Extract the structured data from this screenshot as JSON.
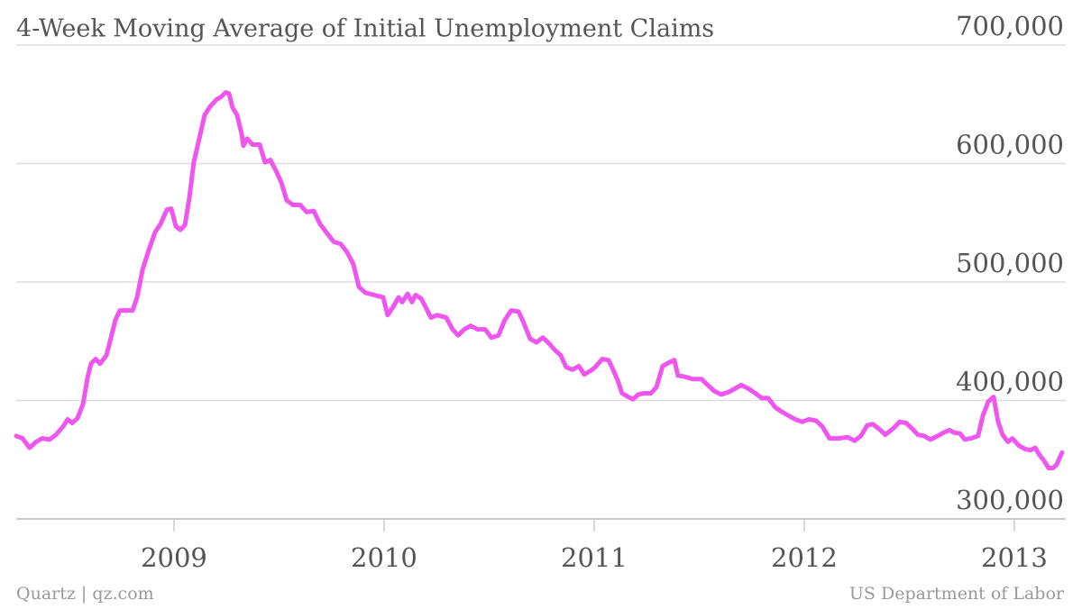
{
  "chart_data": {
    "type": "line",
    "title": "4-Week Moving Average of Initial Unemployment Claims",
    "source_left": "Quartz | qz.com",
    "source_right": "US Department of Labor",
    "color": "#ef55ef",
    "grid": true,
    "xlim": [
      2008.249,
      2013.245
    ],
    "xticks": [
      2009,
      2010,
      2011,
      2012,
      2013
    ],
    "ylim": [
      300000,
      700000
    ],
    "yticks": [
      {
        "value": 300000,
        "label": "300,000"
      },
      {
        "value": 400000,
        "label": "400,000"
      },
      {
        "value": 500000,
        "label": "500,000"
      },
      {
        "value": 600000,
        "label": "600,000"
      },
      {
        "value": 700000,
        "label": "700,000"
      }
    ],
    "x": [
      2008.249,
      2008.279,
      2008.313,
      2008.343,
      2008.373,
      2008.408,
      2008.438,
      2008.472,
      2008.494,
      2008.515,
      2008.541,
      2008.567,
      2008.588,
      2008.605,
      2008.627,
      2008.648,
      2008.678,
      2008.7,
      2008.721,
      2008.742,
      2008.773,
      2008.803,
      2008.824,
      2008.85,
      2008.88,
      2008.91,
      2008.936,
      2008.966,
      2008.987,
      2009.009,
      2009.03,
      2009.052,
      2009.073,
      2009.094,
      2009.124,
      2009.146,
      2009.172,
      2009.202,
      2009.223,
      2009.245,
      2009.262,
      2009.279,
      2009.3,
      2009.322,
      2009.33,
      2009.348,
      2009.373,
      2009.408,
      2009.433,
      2009.459,
      2009.485,
      2009.511,
      2009.536,
      2009.567,
      2009.601,
      2009.631,
      2009.665,
      2009.695,
      2009.725,
      2009.76,
      2009.794,
      2009.824,
      2009.854,
      2009.88,
      2009.91,
      2009.953,
      2009.996,
      2010.017,
      2010.043,
      2010.069,
      2010.086,
      2010.112,
      2010.133,
      2010.15,
      2010.176,
      2010.197,
      2010.223,
      2010.253,
      2010.296,
      2010.326,
      2010.352,
      2010.382,
      2010.412,
      2010.446,
      2010.481,
      2010.511,
      2010.545,
      2010.575,
      2010.605,
      2010.64,
      2010.661,
      2010.695,
      2010.725,
      2010.755,
      2010.781,
      2010.811,
      2010.841,
      2010.867,
      2010.897,
      2010.927,
      2010.953,
      2010.983,
      2011.004,
      2011.039,
      2011.069,
      2011.09,
      2011.112,
      2011.133,
      2011.163,
      2011.185,
      2011.21,
      2011.236,
      2011.27,
      2011.296,
      2011.326,
      2011.356,
      2011.382,
      2011.399,
      2011.433,
      2011.468,
      2011.511,
      2011.541,
      2011.571,
      2011.605,
      2011.639,
      2011.67,
      2011.7,
      2011.734,
      2011.768,
      2011.798,
      2011.828,
      2011.863,
      2011.897,
      2011.927,
      2011.957,
      2011.991,
      2012.022,
      2012.056,
      2012.086,
      2012.12,
      2012.163,
      2012.206,
      2012.24,
      2012.27,
      2012.3,
      2012.326,
      2012.356,
      2012.386,
      2012.421,
      2012.455,
      2012.485,
      2012.515,
      2012.541,
      2012.571,
      2012.601,
      2012.635,
      2012.665,
      2012.691,
      2012.712,
      2012.742,
      2012.764,
      2012.794,
      2012.828,
      2012.85,
      2012.876,
      2012.901,
      2012.923,
      2012.944,
      2012.97,
      2012.991,
      2013.021,
      2013.052,
      2013.077,
      2013.099,
      2013.12,
      2013.142,
      2013.163,
      2013.185,
      2013.202,
      2013.227
    ],
    "values": [
      370000,
      368000,
      360000,
      365000,
      368000,
      367000,
      371000,
      378000,
      384000,
      381000,
      385000,
      397000,
      419000,
      431000,
      435000,
      431000,
      438000,
      453000,
      468000,
      476000,
      476000,
      476000,
      487000,
      510000,
      527000,
      542000,
      549000,
      561000,
      562000,
      547000,
      544000,
      548000,
      571000,
      601000,
      624000,
      641000,
      648000,
      654000,
      656000,
      660000,
      659000,
      647000,
      641000,
      625000,
      615000,
      621000,
      616000,
      616000,
      601000,
      603000,
      594000,
      584000,
      569000,
      565000,
      565000,
      559000,
      560000,
      549000,
      542000,
      534000,
      532000,
      525000,
      515000,
      496000,
      491000,
      489000,
      487000,
      472000,
      479000,
      487000,
      483000,
      490000,
      483000,
      489000,
      486000,
      479000,
      470000,
      472000,
      470000,
      460000,
      455000,
      460000,
      463000,
      460000,
      460000,
      453000,
      455000,
      468000,
      476000,
      475000,
      467000,
      452000,
      449000,
      453000,
      449000,
      443000,
      438000,
      428000,
      426000,
      429000,
      422000,
      425000,
      428000,
      435000,
      434000,
      426000,
      417000,
      406000,
      403000,
      401000,
      405000,
      406000,
      406000,
      411000,
      429000,
      432000,
      434000,
      421000,
      420000,
      418000,
      418000,
      413000,
      408000,
      405000,
      407000,
      410000,
      413000,
      410000,
      406000,
      402000,
      402000,
      394000,
      390000,
      387000,
      384000,
      382000,
      384000,
      383000,
      378000,
      368000,
      368000,
      369000,
      366000,
      370000,
      379000,
      380000,
      376000,
      371000,
      376000,
      382000,
      381000,
      376000,
      371000,
      370000,
      367000,
      370000,
      373000,
      375000,
      373000,
      372000,
      367000,
      368000,
      370000,
      387000,
      399000,
      403000,
      382000,
      371000,
      365000,
      368000,
      362000,
      359000,
      358000,
      360000,
      354000,
      349000,
      343000,
      343000,
      346000,
      356000
    ]
  }
}
